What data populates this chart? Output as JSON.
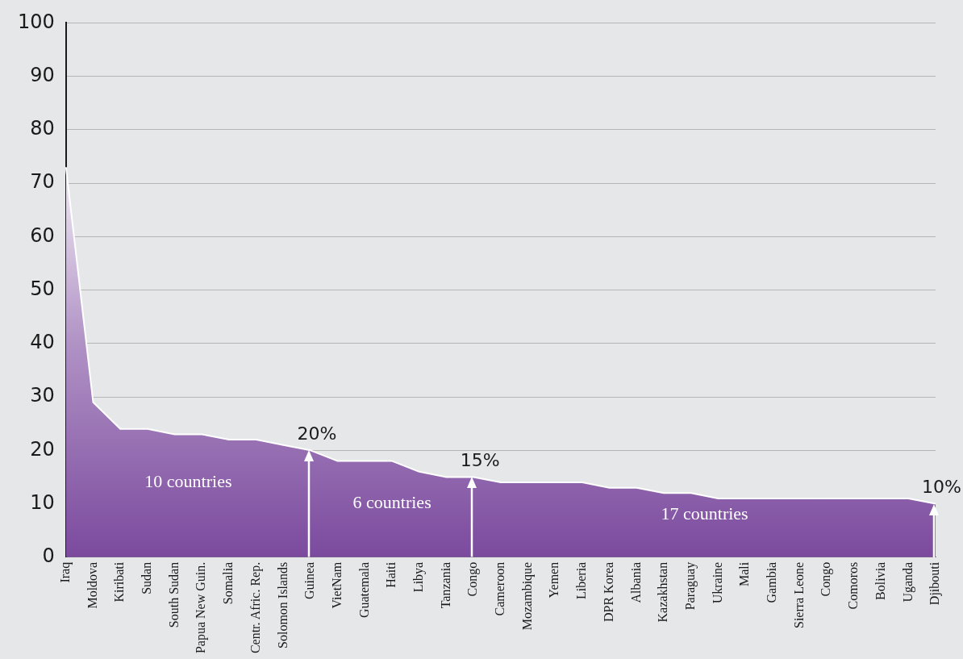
{
  "chart_data": {
    "type": "area",
    "categories": [
      "Iraq",
      "Moldova",
      "Kiribati",
      "Sudan",
      "South Sudan",
      "Papua New Guin.",
      "Somalia",
      "Centr. Afric. Rep.",
      "Solomon Islands",
      "Guinea",
      "VietNam",
      "Guatemala",
      "Haiti",
      "Libya",
      "Tanzania",
      "Congo",
      "Cameroon",
      "Mozambique",
      "Yemen",
      "Liberia",
      "DPR Korea",
      "Albania",
      "Kazakhstan",
      "Paraguay",
      "Ukraine",
      "Mali",
      "Gambia",
      "Sierra Leone",
      "Congo",
      "Comoros",
      "Bolivia",
      "Uganda",
      "Djibouti"
    ],
    "series": [
      {
        "color": "#7b4a9e",
        "values": [
          73,
          29,
          24,
          24,
          23,
          23,
          22,
          22,
          21,
          20,
          18,
          18,
          18,
          16,
          15,
          15,
          14,
          14,
          14,
          14,
          13,
          13,
          12,
          12,
          11,
          11,
          11,
          11,
          11,
          11,
          11,
          11,
          10
        ]
      }
    ],
    "ylim": [
      0,
      100
    ],
    "yticks": [
      0,
      10,
      20,
      30,
      40,
      50,
      60,
      70,
      80,
      90,
      100
    ],
    "grid": "y",
    "legend": false,
    "annotations": [
      {
        "text": "20%",
        "x": "Guinea",
        "y": 20
      },
      {
        "text": "15%",
        "x": "Congo",
        "y": 15
      },
      {
        "text": "10%",
        "x": "Djibouti",
        "y": 10
      },
      "10 countries",
      "6 countries",
      "17 countries"
    ]
  }
}
